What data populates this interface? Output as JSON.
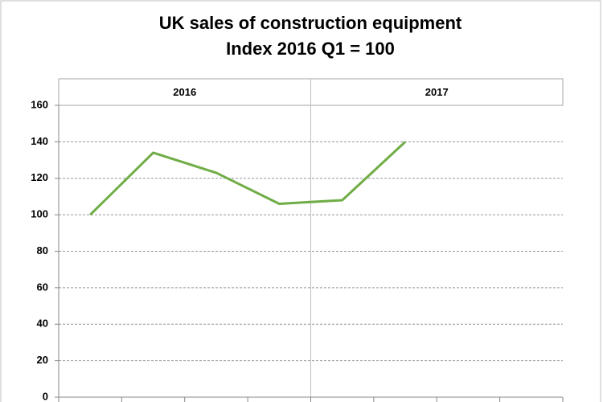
{
  "chart_data": {
    "type": "line",
    "title": "UK sales of construction equipment",
    "subtitle": "Index 2016 Q1 = 100",
    "groups": [
      "2016",
      "2017"
    ],
    "categories": [
      null,
      null,
      null,
      null,
      null,
      null,
      null,
      null
    ],
    "series": [
      {
        "name": null,
        "color": "#70ad47",
        "values": [
          100,
          134,
          123,
          106,
          108,
          140,
          null,
          null
        ]
      }
    ],
    "ylim": [
      0,
      160
    ],
    "yticks": [
      0,
      20,
      40,
      60,
      80,
      100,
      120,
      140,
      160
    ],
    "grid": true
  }
}
